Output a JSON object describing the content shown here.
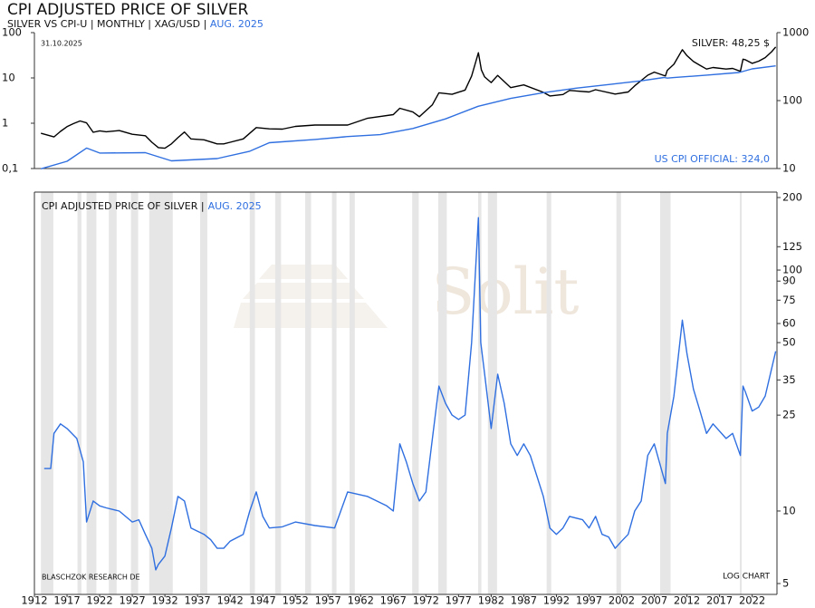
{
  "header": {
    "title": "CPI ADJUSTED PRICE OF SILVER",
    "subtitle": "SILVER VS CPI-U | MONTHLY | XAG/USD |",
    "subtitle_date": "AUG. 2025"
  },
  "chart_data": [
    {
      "type": "line",
      "date": "31.10.2025",
      "log": true,
      "xlim": [
        1912,
        2025.8
      ],
      "ylim": [
        0.1,
        100
      ],
      "yticks": [
        {
          "value": 0.1,
          "label": "0,1"
        },
        1,
        10,
        100
      ],
      "y2lim": [
        10,
        1000
      ],
      "y2ticks": [
        10,
        100,
        1000
      ],
      "annotations": [
        "SILVER: 48,25 $",
        "US CPI OFFICIAL: 324,0"
      ],
      "series": [
        {
          "name": "SILVER",
          "color": "#000000",
          "x": [
            1913,
            1915,
            1916,
            1917,
            1918,
            1919,
            1920,
            1921,
            1922,
            1923,
            1925,
            1927,
            1929,
            1930,
            1931,
            1932,
            1933,
            1934,
            1935,
            1936,
            1938,
            1940,
            1941,
            1942,
            1944,
            1946,
            1948,
            1950,
            1952,
            1955,
            1960,
            1963,
            1967,
            1968,
            1970,
            1971,
            1973,
            1974,
            1976,
            1978,
            1979,
            1980.05,
            1980.5,
            1981,
            1982,
            1983,
            1985,
            1987,
            1990,
            1991,
            1993,
            1994,
            1997,
            1998,
            2001,
            2003,
            2004,
            2006,
            2007,
            2008.7,
            2009,
            2010,
            2011.3,
            2012,
            2013,
            2014,
            2015,
            2016,
            2018,
            2019,
            2020.2,
            2020.6,
            2021,
            2022,
            2023,
            2024,
            2025,
            2025.6
          ],
          "values": [
            0.6,
            0.5,
            0.66,
            0.84,
            0.98,
            1.12,
            1.02,
            0.63,
            0.68,
            0.65,
            0.69,
            0.57,
            0.53,
            0.38,
            0.29,
            0.28,
            0.35,
            0.48,
            0.64,
            0.45,
            0.43,
            0.35,
            0.35,
            0.38,
            0.45,
            0.8,
            0.75,
            0.74,
            0.85,
            0.91,
            0.91,
            1.28,
            1.55,
            2.14,
            1.77,
            1.39,
            2.56,
            4.7,
            4.35,
            5.4,
            11,
            36,
            15,
            10.5,
            7.9,
            11.4,
            6.1,
            7,
            4.8,
            4,
            4.3,
            5.3,
            4.9,
            5.5,
            4.4,
            4.9,
            6.7,
            11.5,
            13.4,
            11,
            14.7,
            20,
            42,
            31,
            23,
            19,
            15.7,
            17,
            15.7,
            16.2,
            14,
            26,
            25,
            21,
            23.4,
            28,
            38,
            48.25
          ]
        },
        {
          "name": "US CPI OFFICIAL",
          "color": "#2f6fe0",
          "axis": "y2",
          "x": [
            1913,
            1917,
            1920,
            1922,
            1929,
            1933,
            1940,
            1945,
            1948,
            1955,
            1960,
            1965,
            1970,
            1975,
            1980,
            1985,
            1990,
            1995,
            2000,
            2005,
            2008.5,
            2009,
            2010,
            2015,
            2020,
            2022,
            2025.6
          ],
          "values": [
            9.9,
            12.8,
            20,
            16.9,
            17.1,
            13,
            14,
            18,
            24,
            26.8,
            29.6,
            31.5,
            38.8,
            53.8,
            82.4,
            107.6,
            130.7,
            152.4,
            172.2,
            195.3,
            219,
            214,
            218,
            237,
            258.8,
            292.7,
            324.0
          ]
        }
      ]
    },
    {
      "type": "line",
      "log": true,
      "title": "CPI ADJUSTED PRICE OF SILVER |",
      "date": "AUG. 2025",
      "watermark": "Solit",
      "source": "BLASCHZOK RESEARCH DE",
      "note": "LOG CHART",
      "xlim": [
        1912,
        2025.8
      ],
      "xticks": [
        1912,
        1917,
        1922,
        1927,
        1932,
        1937,
        1942,
        1947,
        1952,
        1957,
        1962,
        1967,
        1972,
        1977,
        1982,
        1987,
        1992,
        1997,
        2002,
        2007,
        2012,
        2017,
        2022
      ],
      "ylim": [
        5,
        200
      ],
      "yticks": [
        5,
        10,
        25,
        35,
        50,
        60,
        75,
        90,
        100,
        125,
        200
      ],
      "shaded_x": [
        [
          1913,
          1914.9
        ],
        [
          1918.6,
          1919.2
        ],
        [
          1920,
          1921.5
        ],
        [
          1923.4,
          1924.6
        ],
        [
          1926.8,
          1927.9
        ],
        [
          1929.6,
          1933.2
        ],
        [
          1937.4,
          1938.5
        ],
        [
          1945,
          1945.8
        ],
        [
          1948.9,
          1949.8
        ],
        [
          1953.5,
          1954.4
        ],
        [
          1957.6,
          1958.3
        ],
        [
          1960.3,
          1961.1
        ],
        [
          1969.9,
          1970.9
        ],
        [
          1973.9,
          1975.2
        ],
        [
          1980,
          1980.5
        ],
        [
          1981.5,
          1982.9
        ],
        [
          1990.5,
          1991.2
        ],
        [
          2001.2,
          2001.9
        ],
        [
          2007.9,
          2009.5
        ],
        [
          2020.1,
          2020.4
        ]
      ],
      "series": [
        {
          "name": "CPI ADJUSTED PRICE OF SILVER",
          "color": "#2f6fe0",
          "x": [
            1913.5,
            1914.5,
            1915,
            1916,
            1917,
            1918.5,
            1919.5,
            1920,
            1921,
            1922,
            1923,
            1925,
            1927,
            1928,
            1929,
            1930,
            1930.6,
            1931,
            1932,
            1933,
            1934,
            1935,
            1936,
            1938,
            1939,
            1940,
            1941,
            1942,
            1944,
            1945,
            1946,
            1947,
            1948,
            1950,
            1952,
            1955,
            1958,
            1960,
            1963,
            1966,
            1967,
            1968,
            1969,
            1970,
            1971,
            1972,
            1973,
            1974,
            1975,
            1976,
            1977,
            1978,
            1979,
            1980.05,
            1980.4,
            1981,
            1982,
            1983,
            1984,
            1985,
            1986,
            1987,
            1988,
            1989,
            1990,
            1991,
            1992,
            1993,
            1994,
            1996,
            1997,
            1998,
            1999,
            2000,
            2001,
            2002,
            2003,
            2004,
            2005,
            2006,
            2007,
            2008.7,
            2009,
            2010,
            2011.3,
            2012,
            2013,
            2014,
            2015,
            2016,
            2018,
            2019,
            2020.2,
            2020.6,
            2021,
            2022,
            2023,
            2024,
            2025.6
          ],
          "values": [
            15,
            15,
            21,
            23,
            22,
            20,
            16,
            9,
            11,
            10.5,
            10.3,
            10,
            9,
            9.2,
            8,
            7,
            5.7,
            6,
            6.5,
            8.5,
            11.5,
            11,
            8.5,
            8,
            7.6,
            7,
            7,
            7.5,
            8,
            10,
            12,
            9.5,
            8.5,
            8.6,
            9,
            8.7,
            8.5,
            12,
            11.5,
            10.5,
            10,
            19,
            16,
            13,
            11,
            12,
            20,
            33,
            28,
            25,
            24,
            25,
            50,
            165,
            50,
            37,
            22,
            37,
            28,
            19,
            17,
            19,
            17,
            14,
            11.5,
            8.5,
            8,
            8.5,
            9.5,
            9.2,
            8.5,
            9.5,
            8,
            7.8,
            7,
            7.5,
            8,
            10,
            11,
            17,
            19,
            13,
            21,
            30,
            62,
            45,
            32,
            26,
            21,
            23,
            20,
            21,
            17,
            33,
            31,
            26,
            27,
            30,
            46
          ]
        }
      ]
    }
  ]
}
